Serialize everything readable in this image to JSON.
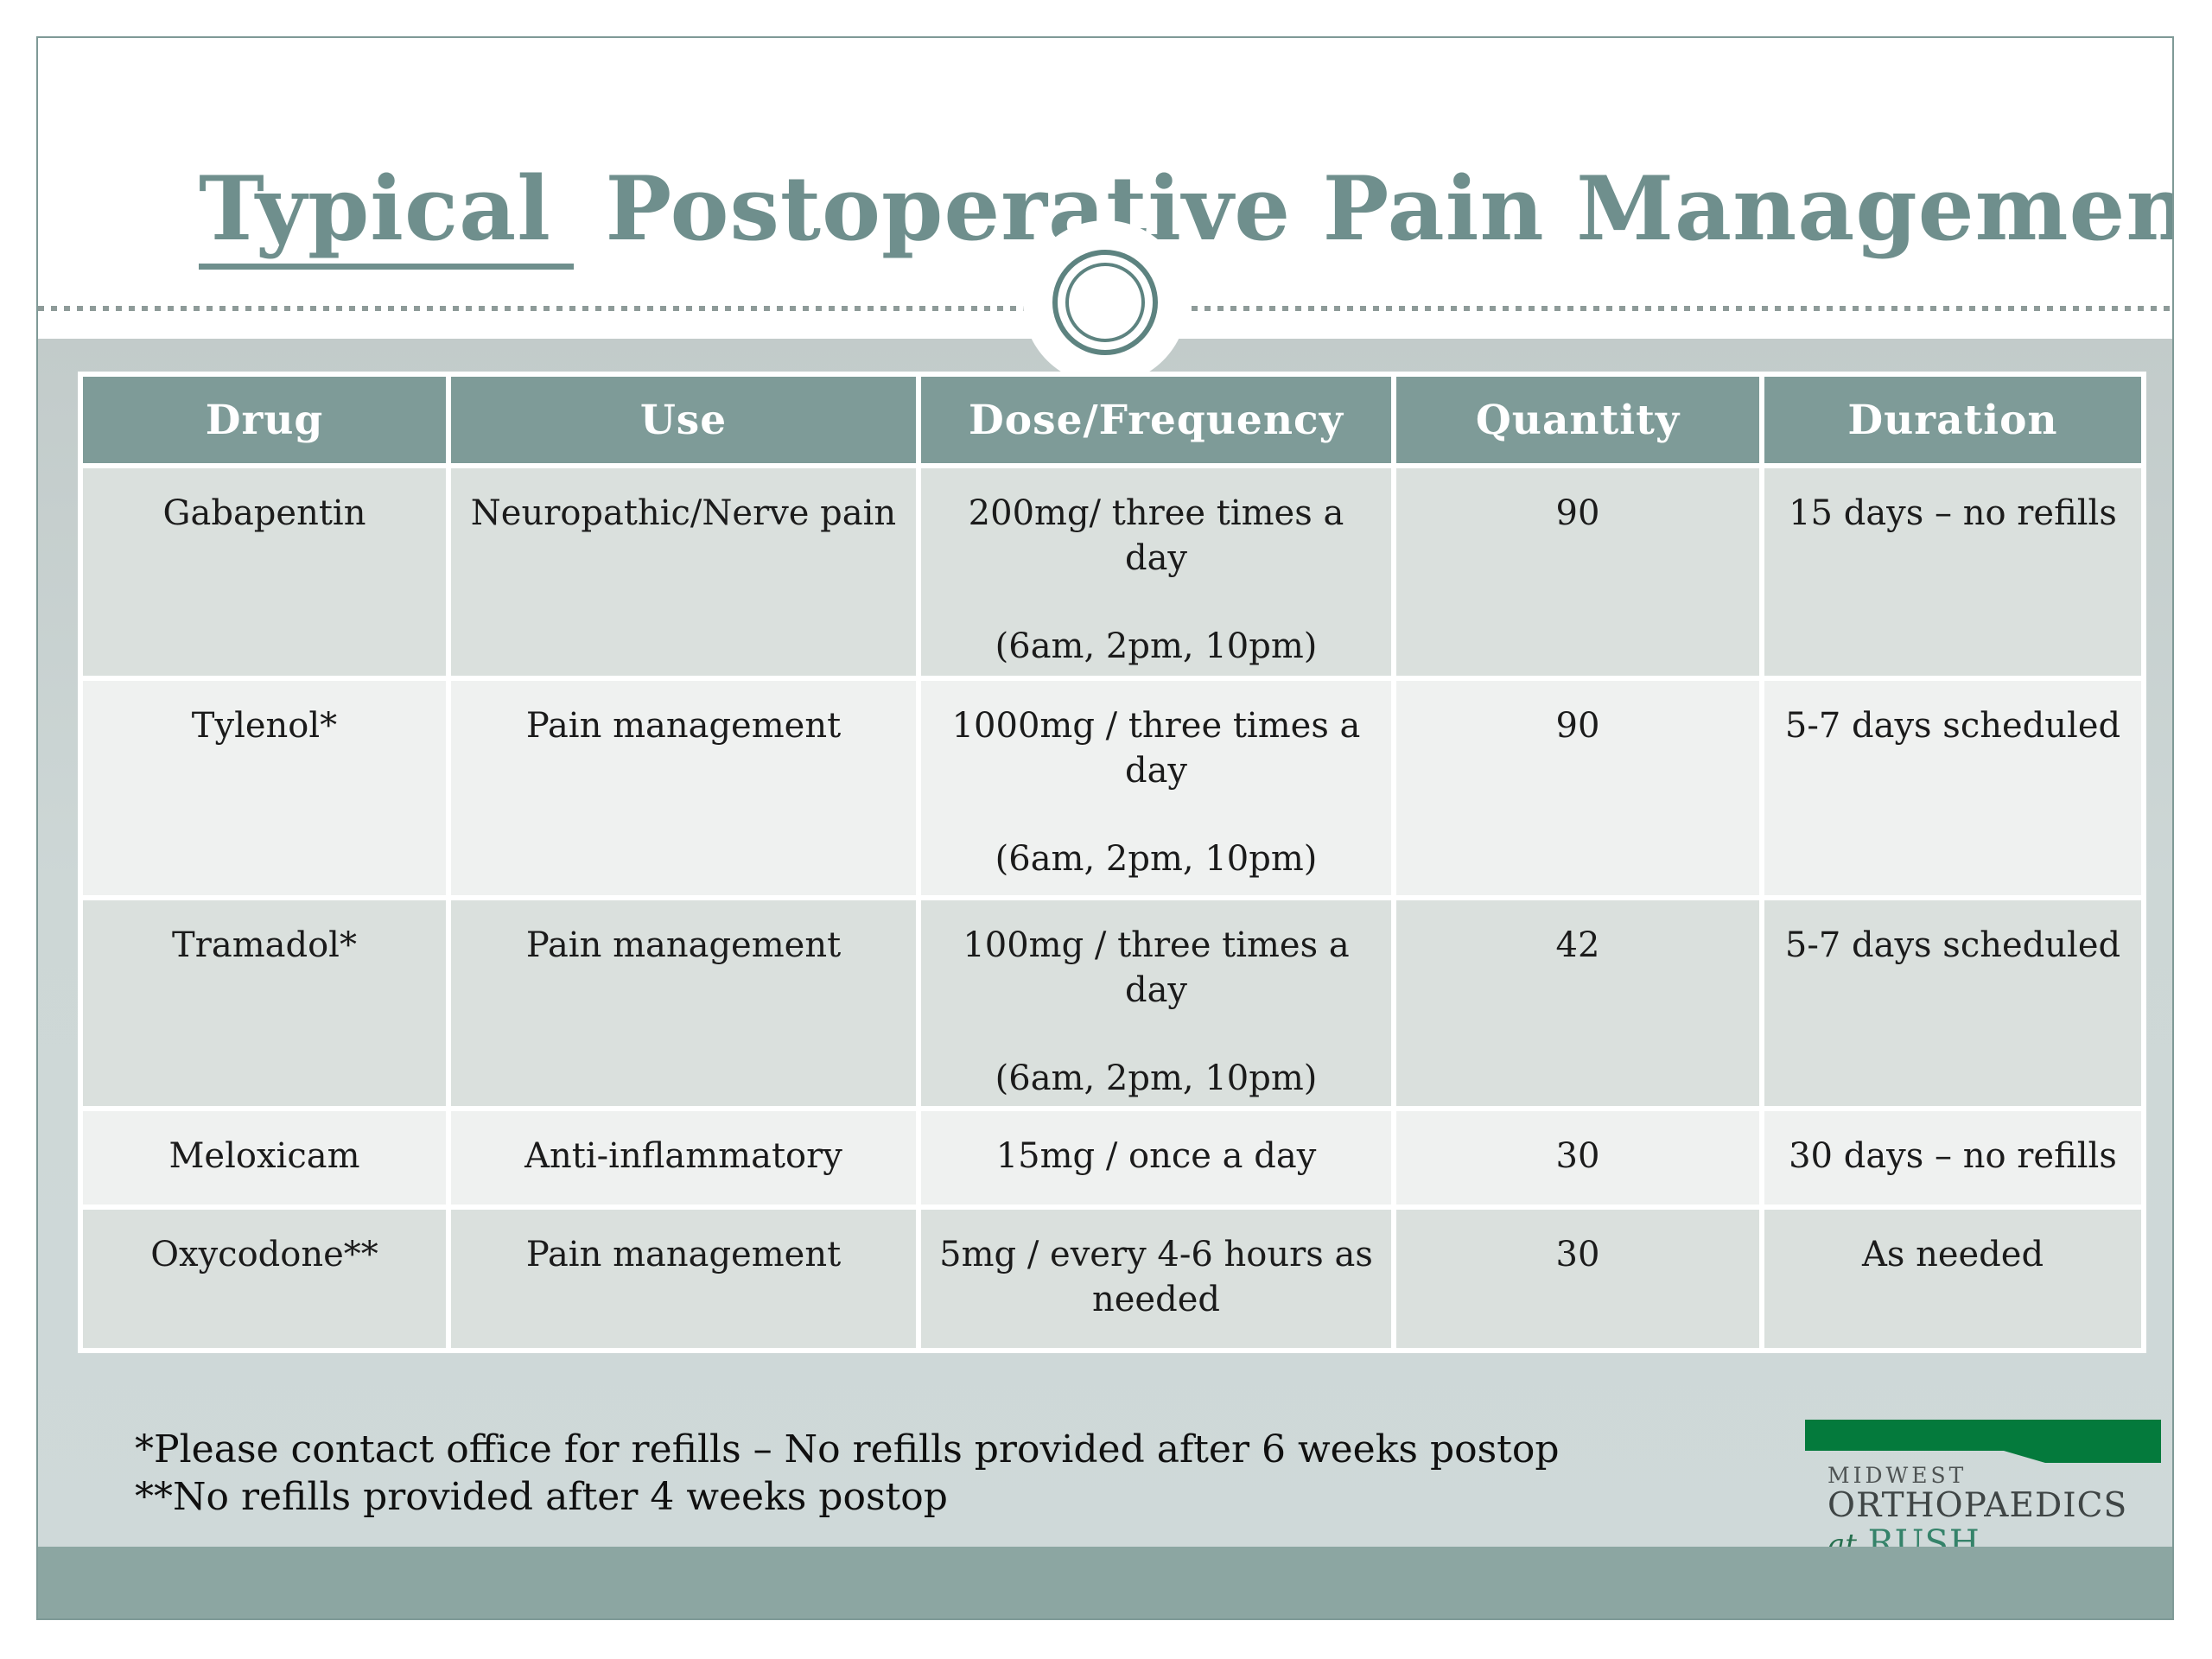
{
  "slide": {
    "title": {
      "underlined": "Typical",
      "rest": " Postoperative Pain Management"
    },
    "table": {
      "headers": [
        "Drug",
        "Use",
        "Dose/Frequency",
        "Quantity",
        "Duration"
      ],
      "rows": [
        {
          "drug": "Gabapentin",
          "use": "Neuropathic/Nerve pain",
          "dose": "200mg/ three times a day",
          "times": "(6am, 2pm, 10pm)",
          "quantity": "90",
          "duration": "15 days – no refills"
        },
        {
          "drug": "Tylenol*",
          "use": "Pain management",
          "dose": "1000mg / three times a day",
          "times": "(6am, 2pm, 10pm)",
          "quantity": "90",
          "duration": "5-7 days scheduled"
        },
        {
          "drug": "Tramadol*",
          "use": "Pain management",
          "dose": "100mg / three times a day",
          "times": "(6am, 2pm, 10pm)",
          "quantity": "42",
          "duration": "5-7 days scheduled"
        },
        {
          "drug": "Meloxicam",
          "use": "Anti-inflammatory",
          "dose": "15mg / once a day",
          "times": "",
          "quantity": "30",
          "duration": "30 days – no refills"
        },
        {
          "drug": "Oxycodone**",
          "use": "Pain management",
          "dose": "5mg / every 4-6 hours as needed",
          "times": "",
          "quantity": "30",
          "duration": "As needed"
        }
      ]
    },
    "footnotes": [
      "*Please contact office for refills – No refills provided after 6 weeks postop",
      "**No refills provided after 4 weeks postop"
    ],
    "logo": {
      "line1": "MIDWEST",
      "line2": "ORTHOPAEDICS",
      "line3_prefix": "at",
      "line3_name": "RUSH"
    },
    "colors": {
      "accent_teal": "#6f8f8d",
      "table_header_bg": "#7e9b98",
      "row_dark": "#dae0dd",
      "row_light": "#eff1f0",
      "bottom_bar": "#8ca6a2",
      "logo_green": "#047a3c"
    }
  }
}
